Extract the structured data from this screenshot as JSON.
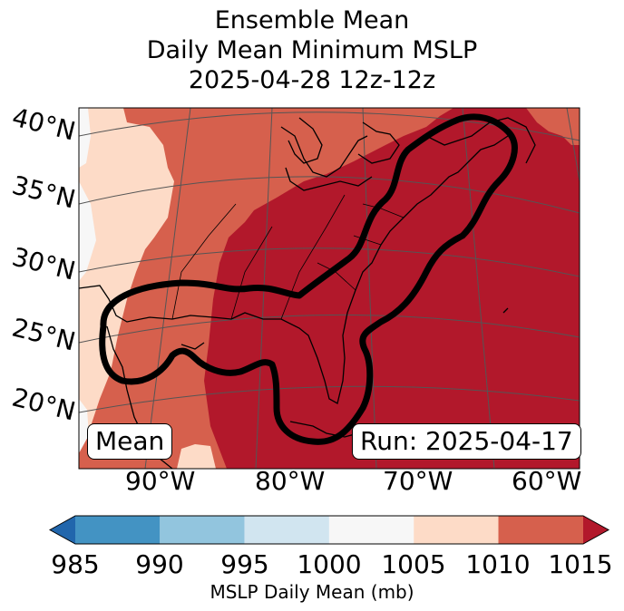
{
  "title": {
    "line1": "Ensemble Mean",
    "line2": "Daily Mean Minimum MSLP",
    "line3": "2025-04-28 12z-12z"
  },
  "map": {
    "lat_labels": [
      "40°N",
      "35°N",
      "30°N",
      "25°N",
      "20°N"
    ],
    "lon_labels": [
      "90°W",
      "80°W",
      "70°W",
      "60°W"
    ],
    "mean_label": "Mean",
    "run_label": "Run: 2025-04-17"
  },
  "colorbar": {
    "ticks": [
      "985",
      "990",
      "995",
      "1000",
      "1005",
      "1010",
      "1015"
    ],
    "label": "MSLP Daily Mean (mb)",
    "colors": {
      "under": "#2166ac",
      "c985_990": "#4393c3",
      "c990_995": "#92c5de",
      "c995_1000": "#d1e5f0",
      "c1000_1005": "#f7f7f7",
      "c1005_1010": "#fddbc7",
      "c1010_1015": "#d6604d",
      "over": "#b2182b"
    }
  }
}
